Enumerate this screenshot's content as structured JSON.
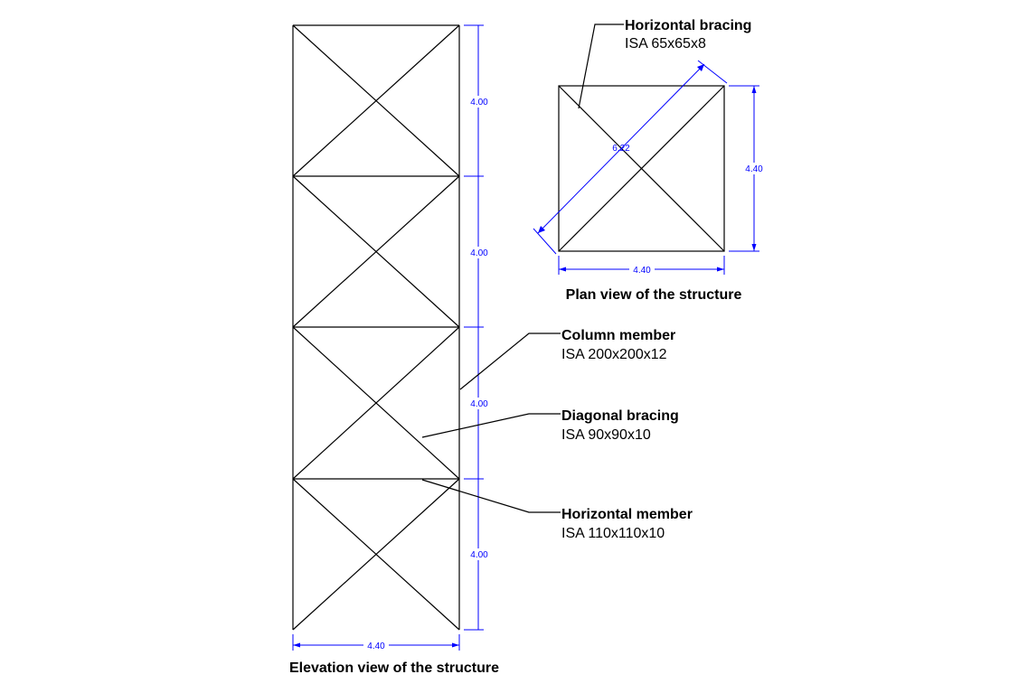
{
  "elevation": {
    "caption": "Elevation view of the structure",
    "panel_heights": [
      "4.00",
      "4.00",
      "4.00",
      "4.00"
    ],
    "width_dim": "4.40"
  },
  "plan": {
    "caption": "Plan view of the structure",
    "width_dim": "4.40",
    "depth_dim": "4.40",
    "diagonal_dim": "6.22"
  },
  "callouts": {
    "horizontal_bracing": {
      "title": "Horizontal bracing",
      "section": "ISA 65x65x8"
    },
    "column_member": {
      "title": "Column member",
      "section": "ISA 200x200x12"
    },
    "diagonal_bracing": {
      "title": "Diagonal bracing",
      "section": "ISA 90x90x10"
    },
    "horizontal_member": {
      "title": "Horizontal member",
      "section": "ISA 110x110x10"
    }
  },
  "colors": {
    "line": "#000000",
    "dimension": "#0000ff",
    "background": "#ffffff"
  }
}
